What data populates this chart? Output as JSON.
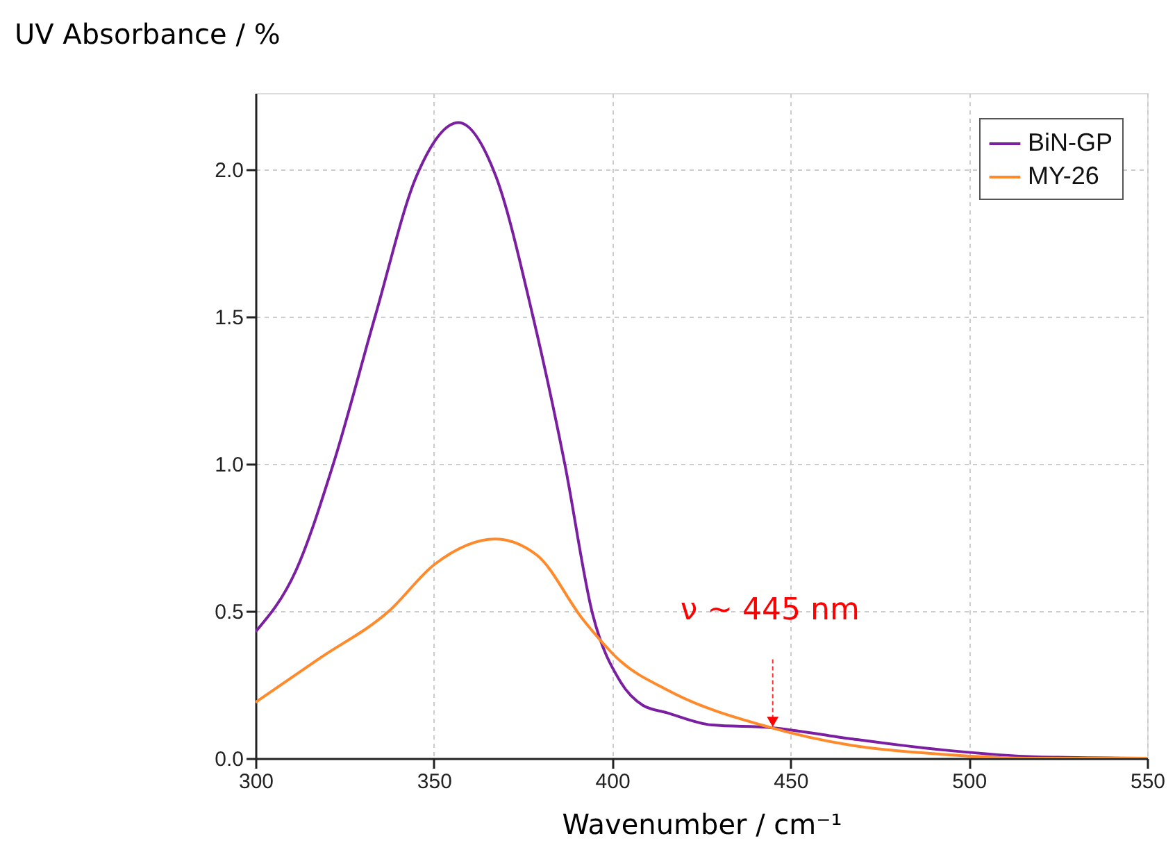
{
  "chart_data": {
    "type": "line",
    "xlabel": "Wavenumber / cm⁻¹",
    "ylabel": "UV Absorbance / %",
    "xlim": [
      300,
      550
    ],
    "ylim": [
      0,
      2.26
    ],
    "xticks": [
      300,
      350,
      400,
      450,
      500,
      550
    ],
    "yticks": [
      {
        "value": 0,
        "label": "0.0"
      },
      {
        "value": 0.5,
        "label": "0.5"
      },
      {
        "value": 1.0,
        "label": "1.0"
      },
      {
        "value": 1.5,
        "label": "1.5"
      },
      {
        "value": 2.0,
        "label": "2.0"
      }
    ],
    "grid": true,
    "legend": "top right",
    "line_style": "solid",
    "marker": "none",
    "series": [
      {
        "name": "BiN-GP",
        "color": "#7a1fa2",
        "x": [
          300,
          311.4,
          321.8,
          333.5,
          345.2,
          356.9,
          367.3,
          377.6,
          386.7,
          394.5,
          402.3,
          408.6,
          415.3,
          428,
          444.5,
          467,
          493,
          519,
          550
        ],
        "values": [
          0.43,
          0.64,
          1.0,
          1.5,
          1.98,
          2.16,
          1.98,
          1.51,
          1.0,
          0.49,
          0.26,
          0.18,
          0.155,
          0.113,
          0.104,
          0.066,
          0.028,
          0.005,
          0.0
        ]
      },
      {
        "name": "MY-26",
        "color": "#ff8a2b",
        "x": [
          300,
          318,
          337.4,
          350.3,
          367.2,
          378.9,
          391.9,
          402.3,
          415.3,
          444.5,
          467,
          493,
          519,
          550
        ],
        "values": [
          0.19,
          0.34,
          0.5,
          0.66,
          0.745,
          0.69,
          0.47,
          0.33,
          0.233,
          0.104,
          0.044,
          0.013,
          0.0,
          0.0
        ]
      }
    ],
    "annotations": [
      {
        "text": "ν ~ 445 nm",
        "x": 445,
        "y": 0.1
      }
    ]
  }
}
